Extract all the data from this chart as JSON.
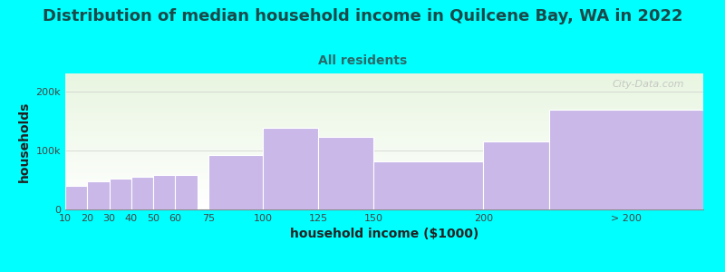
{
  "title": "Distribution of median household income in Quilcene Bay, WA in 2022",
  "subtitle": "All residents",
  "xlabel": "household income ($1000)",
  "ylabel": "households",
  "bar_color": "#c9b8e8",
  "bar_edge_color": "#ffffff",
  "categories": [
    "10",
    "20",
    "30",
    "40",
    "50",
    "60",
    "75",
    "100",
    "125",
    "150",
    "200",
    "> 200"
  ],
  "bar_lefts": [
    10,
    20,
    30,
    40,
    50,
    60,
    75,
    100,
    125,
    150,
    200,
    230
  ],
  "bar_widths": [
    10,
    10,
    10,
    10,
    10,
    10,
    25,
    25,
    25,
    50,
    30,
    70
  ],
  "values": [
    40000,
    48000,
    52000,
    55000,
    58000,
    58000,
    92000,
    138000,
    122000,
    82000,
    115000,
    168000
  ],
  "xlim": [
    10,
    300
  ],
  "xtick_positions": [
    10,
    20,
    30,
    40,
    50,
    60,
    75,
    100,
    125,
    150,
    200,
    265
  ],
  "xtick_labels": [
    "10",
    "20",
    "30",
    "40",
    "50",
    "60",
    "75",
    "100",
    "125",
    "150",
    "200",
    "> 200"
  ],
  "ylim": [
    0,
    230000
  ],
  "yticks": [
    0,
    100000,
    200000
  ],
  "ytick_labels": [
    "0",
    "100k",
    "200k"
  ],
  "background_color": "#00ffff",
  "plot_bg_top": "#e8f5e0",
  "plot_bg_bottom": "#ffffff",
  "title_fontsize": 13,
  "subtitle_fontsize": 10,
  "axis_label_fontsize": 10,
  "tick_fontsize": 8,
  "title_color": "#1a4a4a",
  "subtitle_color": "#2a6a6a",
  "watermark": "City-Data.com"
}
